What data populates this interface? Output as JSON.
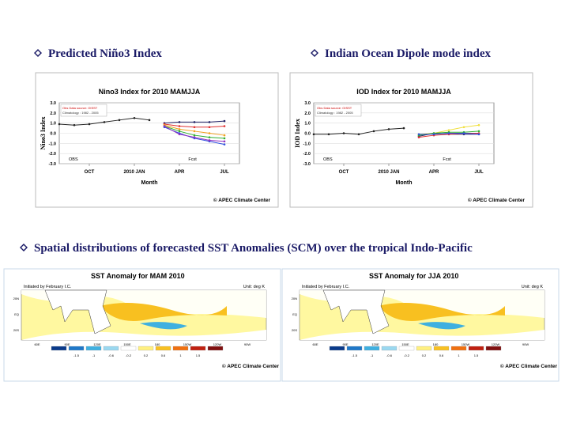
{
  "headings": {
    "nino3": "Predicted Niño3 Index",
    "iod": "Indian Ocean Dipole mode index",
    "sst": "Spatial distributions of forecasted SST Anomalies (SCM) over the tropical Indo-Pacific"
  },
  "charts": [
    {
      "type": "line",
      "title": "Nino3 Index for 2010 MAMJJA",
      "ylabel": "Nino3 Index",
      "xlabel": "Month",
      "info": [
        "Obs Data source: OISST",
        "Climatology : 1982 - 2005"
      ],
      "obs_label": "OBS",
      "fcst_label": "Fcst",
      "credit": "© APEC Climate Center",
      "xlim": [
        0,
        12
      ],
      "xticks": [
        {
          "value": 2,
          "label": "OCT"
        },
        {
          "value": 5,
          "label": "2010 JAN"
        },
        {
          "value": 8,
          "label": "APR"
        },
        {
          "value": 11,
          "label": "JUL"
        }
      ],
      "ylim": [
        -3,
        3
      ],
      "yticks": [
        {
          "value": 3,
          "label": "3.0"
        },
        {
          "value": 2,
          "label": "2.0"
        },
        {
          "value": 1,
          "label": "1.0"
        },
        {
          "value": 0,
          "label": "0.0"
        },
        {
          "value": -1,
          "label": "-1.0"
        },
        {
          "value": -2,
          "label": "-2.0"
        },
        {
          "value": -3,
          "label": "-3.0"
        }
      ],
      "series": [
        {
          "color": "#222222",
          "x": [
            0,
            1,
            2,
            3,
            4,
            5,
            6
          ],
          "values": [
            0.9,
            0.8,
            0.9,
            1.1,
            1.3,
            1.5,
            1.3
          ]
        },
        {
          "color": "#222266",
          "x": [
            7,
            8,
            9,
            10,
            11
          ],
          "values": [
            1.0,
            1.1,
            1.1,
            1.1,
            1.2
          ]
        },
        {
          "color": "#e03030",
          "x": [
            7,
            8,
            9,
            10,
            11
          ],
          "values": [
            0.9,
            0.7,
            0.6,
            0.6,
            0.7
          ]
        },
        {
          "color": "#f0a020",
          "x": [
            7,
            8,
            9,
            10,
            11
          ],
          "values": [
            0.8,
            0.4,
            0.2,
            0,
            -0.2
          ]
        },
        {
          "color": "#30b030",
          "x": [
            7,
            8,
            9,
            10,
            11
          ],
          "values": [
            0.7,
            0.2,
            -0.2,
            -0.4,
            -0.5
          ]
        },
        {
          "color": "#3050e0",
          "x": [
            7,
            8,
            9,
            10,
            11
          ],
          "values": [
            0.6,
            0,
            -0.5,
            -0.8,
            -1.1
          ]
        },
        {
          "color": "#9030c0",
          "x": [
            7,
            8,
            9,
            10,
            11
          ],
          "values": [
            0.7,
            -0.1,
            -0.4,
            -0.7,
            -0.8
          ]
        }
      ]
    },
    {
      "type": "line",
      "title": "IOD Index for 2010 MAMJJA",
      "ylabel": "IOD Index",
      "xlabel": "Month",
      "info": [
        "Obs Data source: OISST",
        "Climatology : 1982 - 2005"
      ],
      "obs_label": "OBS",
      "fcst_label": "Fcst",
      "credit": "© APEC Climate Center",
      "xlim": [
        0,
        12
      ],
      "xticks": [
        {
          "value": 2,
          "label": "OCT"
        },
        {
          "value": 5,
          "label": "2010 JAN"
        },
        {
          "value": 8,
          "label": "APR"
        },
        {
          "value": 11,
          "label": "JUL"
        }
      ],
      "ylim": [
        -3,
        3
      ],
      "yticks": [
        {
          "value": 3,
          "label": "3.0"
        },
        {
          "value": 2,
          "label": "2.0"
        },
        {
          "value": 1,
          "label": "1.0"
        },
        {
          "value": 0,
          "label": "0.0"
        },
        {
          "value": -1,
          "label": "-1.0"
        },
        {
          "value": -2,
          "label": "-2.0"
        },
        {
          "value": -3,
          "label": "-3.0"
        }
      ],
      "series": [
        {
          "color": "#222222",
          "x": [
            0,
            1,
            2,
            3,
            4,
            5,
            6
          ],
          "values": [
            -0.1,
            -0.1,
            0,
            -0.1,
            0.2,
            0.4,
            0.5
          ]
        },
        {
          "color": "#222266",
          "x": [
            7,
            8,
            9,
            10,
            11
          ],
          "values": [
            -0.3,
            0,
            -0.1,
            -0.1,
            -0.1
          ]
        },
        {
          "color": "#f0e040",
          "x": [
            7,
            8,
            9,
            10,
            11
          ],
          "values": [
            -0.1,
            0,
            0.3,
            0.6,
            0.8
          ]
        },
        {
          "color": "#e03030",
          "x": [
            7,
            8,
            9,
            10,
            11
          ],
          "values": [
            -0.4,
            -0.2,
            -0.1,
            0,
            0
          ]
        },
        {
          "color": "#30b030",
          "x": [
            7,
            8,
            9,
            10,
            11
          ],
          "values": [
            -0.2,
            0,
            0.1,
            0.1,
            0.2
          ]
        },
        {
          "color": "#3050e0",
          "x": [
            7,
            8,
            9,
            10,
            11
          ],
          "values": [
            -0.1,
            -0.1,
            0,
            0,
            -0.1
          ]
        }
      ]
    }
  ],
  "maps": [
    {
      "title": "SST Anomaly for MAM 2010",
      "init": "Initiated by February I.C.",
      "unit": "Unit: deg K",
      "credit": "© APEC Climate Center",
      "lon_labels": [
        "60E",
        "90E",
        "120E",
        "150E",
        "180",
        "150W",
        "120W",
        "90W"
      ],
      "lat_labels": [
        "20N",
        "EQ",
        "20S"
      ],
      "colorbar": {
        "colors": [
          "#0a3a8a",
          "#1f78c8",
          "#3fb0e0",
          "#9ad8f0",
          "#ffffff",
          "#fff080",
          "#f8c020",
          "#f07010",
          "#c02010",
          "#801010"
        ],
        "labels": [
          "-1.5",
          "-1",
          "-0.6",
          "-0.2",
          "0.2",
          "0.6",
          "1",
          "1.5"
        ]
      }
    },
    {
      "title": "SST Anomaly for JJA 2010",
      "init": "Initiated by February I.C.",
      "unit": "Unit: deg K",
      "credit": "© APEC Climate Center",
      "lon_labels": [
        "60E",
        "90E",
        "120E",
        "150E",
        "180",
        "150W",
        "120W",
        "90W"
      ],
      "lat_labels": [
        "20N",
        "EQ",
        "20S"
      ],
      "colorbar": {
        "colors": [
          "#0a3a8a",
          "#1f78c8",
          "#3fb0e0",
          "#9ad8f0",
          "#ffffff",
          "#fff080",
          "#f8c020",
          "#f07010",
          "#c02010",
          "#801010"
        ],
        "labels": [
          "-1.5",
          "-1",
          "-0.6",
          "-0.2",
          "0.2",
          "0.6",
          "1",
          "1.5"
        ]
      }
    }
  ]
}
